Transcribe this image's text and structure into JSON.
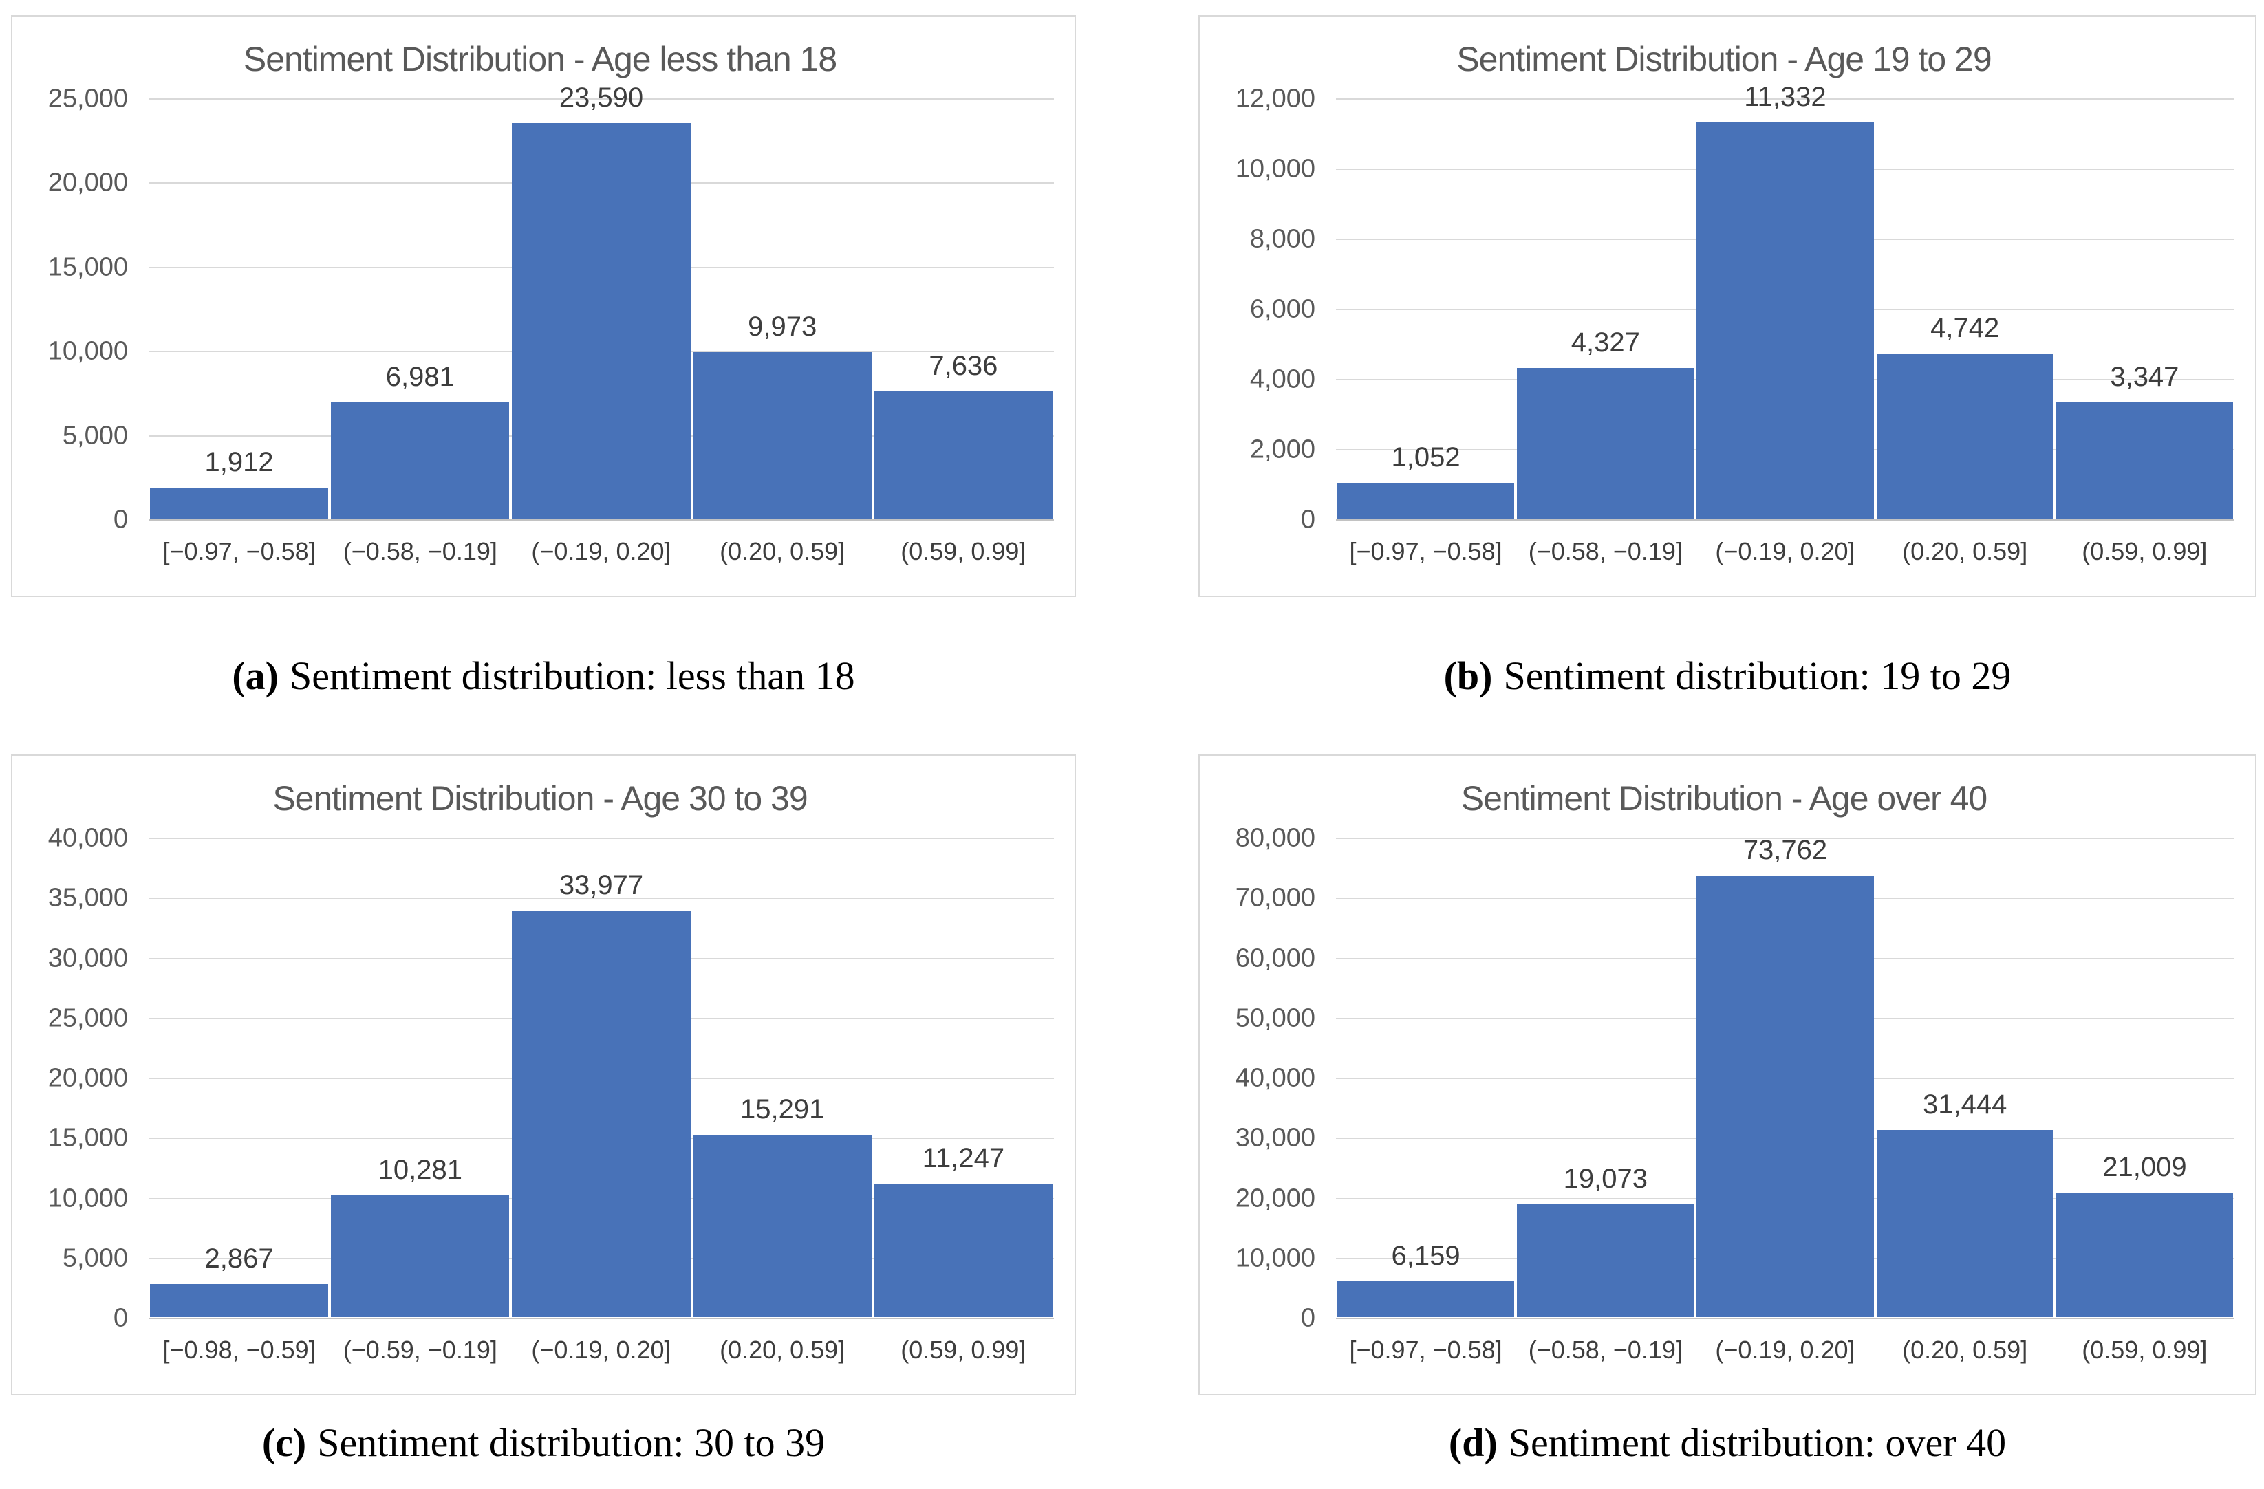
{
  "figure": {
    "name": "Sentiment distribution by age group",
    "style": {
      "bar_color": "#4872b8",
      "gridline_color": "#d9d9d9",
      "baseline_color": "#c2c2c2",
      "panel_border_color": "#d9d9d9",
      "title_color": "#595959",
      "y_tick_color": "#595959",
      "label_color": "#3d3d3d",
      "caption_color": "#000000",
      "background": "#ffffff"
    }
  },
  "chart_data": [
    {
      "id": "a",
      "type": "bar",
      "title": "Sentiment Distribution - Age less than 18",
      "categories": [
        "[−0.97, −0.58]",
        "(−0.58, −0.19]",
        "(−0.19, 0.20]",
        "(0.20, 0.59]",
        "(0.59, 0.99]"
      ],
      "values": [
        1912,
        6981,
        23590,
        9973,
        7636
      ],
      "value_labels": [
        "1,912",
        "6,981",
        "23,590",
        "9,973",
        "7,636"
      ],
      "y_ticks": [
        "0",
        "5,000",
        "10,000",
        "15,000",
        "20,000",
        "25,000"
      ],
      "ylim": [
        0,
        25000
      ],
      "grid": true,
      "legend": false,
      "xlabel": "",
      "ylabel": "",
      "caption_label": "(a)",
      "caption_text": "Sentiment distribution: less than 18"
    },
    {
      "id": "b",
      "type": "bar",
      "title": "Sentiment Distribution - Age 19 to 29",
      "categories": [
        "[−0.97, −0.58]",
        "(−0.58, −0.19]",
        "(−0.19, 0.20]",
        "(0.20, 0.59]",
        "(0.59, 0.99]"
      ],
      "values": [
        1052,
        4327,
        11332,
        4742,
        3347
      ],
      "value_labels": [
        "1,052",
        "4,327",
        "11,332",
        "4,742",
        "3,347"
      ],
      "y_ticks": [
        "0",
        "2,000",
        "4,000",
        "6,000",
        "8,000",
        "10,000",
        "12,000"
      ],
      "ylim": [
        0,
        12000
      ],
      "grid": true,
      "legend": false,
      "xlabel": "",
      "ylabel": "",
      "caption_label": "(b)",
      "caption_text": "Sentiment distribution: 19 to 29"
    },
    {
      "id": "c",
      "type": "bar",
      "title": "Sentiment Distribution - Age 30 to 39",
      "categories": [
        "[−0.98, −0.59]",
        "(−0.59, −0.19]",
        "(−0.19, 0.20]",
        "(0.20, 0.59]",
        "(0.59, 0.99]"
      ],
      "values": [
        2867,
        10281,
        33977,
        15291,
        11247
      ],
      "value_labels": [
        "2,867",
        "10,281",
        "33,977",
        "15,291",
        "11,247"
      ],
      "y_ticks": [
        "0",
        "5,000",
        "10,000",
        "15,000",
        "20,000",
        "25,000",
        "30,000",
        "35,000",
        "40,000"
      ],
      "ylim": [
        0,
        40000
      ],
      "grid": true,
      "legend": false,
      "xlabel": "",
      "ylabel": "",
      "caption_label": "(c)",
      "caption_text": "Sentiment distribution: 30 to 39"
    },
    {
      "id": "d",
      "type": "bar",
      "title": "Sentiment Distribution - Age over 40",
      "categories": [
        "[−0.97, −0.58]",
        "(−0.58, −0.19]",
        "(−0.19, 0.20]",
        "(0.20, 0.59]",
        "(0.59, 0.99]"
      ],
      "values": [
        6159,
        19073,
        73762,
        31444,
        21009
      ],
      "value_labels": [
        "6,159",
        "19,073",
        "73,762",
        "31,444",
        "21,009"
      ],
      "y_ticks": [
        "0",
        "10,000",
        "20,000",
        "30,000",
        "40,000",
        "50,000",
        "60,000",
        "70,000",
        "80,000"
      ],
      "ylim": [
        0,
        80000
      ],
      "grid": true,
      "legend": false,
      "xlabel": "",
      "ylabel": "",
      "caption_label": "(d)",
      "caption_text": "Sentiment distribution: over 40"
    }
  ]
}
